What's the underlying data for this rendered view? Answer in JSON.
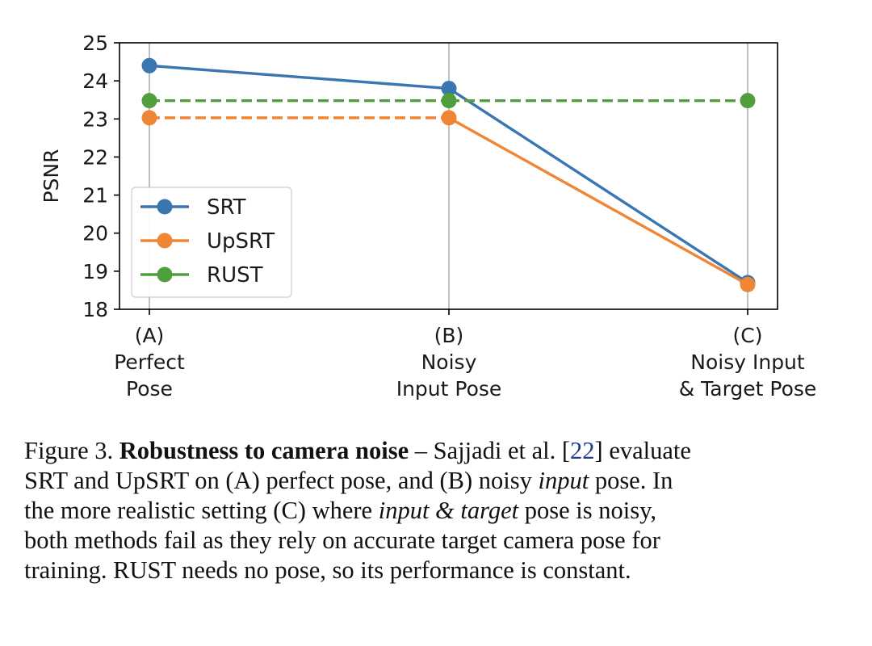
{
  "chart_data": {
    "type": "line",
    "categories": [
      [
        "(A)",
        "Perfect",
        "Pose"
      ],
      [
        "(B)",
        "Noisy",
        "Input Pose"
      ],
      [
        "(C)",
        "Noisy Input",
        "& Target Pose"
      ]
    ],
    "ylabel": "PSNR",
    "ylim": [
      18,
      25
    ],
    "yticks": [
      "18",
      "19",
      "20",
      "21",
      "22",
      "23",
      "24",
      "25"
    ],
    "grid": "vertical",
    "legend_position": "lower-left",
    "series": [
      {
        "name": "SRT",
        "color": "#3a76af",
        "values": [
          24.4,
          23.8,
          18.7
        ],
        "segments": [
          [
            "solid",
            0,
            1
          ],
          [
            "solid",
            1,
            2
          ]
        ]
      },
      {
        "name": "UpSRT",
        "color": "#ef8636",
        "values": [
          23.03,
          23.03,
          18.65
        ],
        "segments": [
          [
            "dashed",
            0,
            1
          ],
          [
            "solid",
            1,
            2
          ]
        ]
      },
      {
        "name": "RUST",
        "color": "#519e3e",
        "values": [
          23.48,
          23.48,
          23.48
        ],
        "segments": [
          [
            "dashed",
            0,
            1
          ],
          [
            "dashed",
            1,
            2
          ]
        ]
      }
    ]
  },
  "caption": {
    "lines": [
      [
        {
          "t": "Figure 3. "
        },
        {
          "t": "Robustness to camera noise",
          "s": "b"
        },
        {
          "t": " – Sajjadi et al. ["
        },
        {
          "t": "22",
          "s": "ref"
        },
        {
          "t": "] evaluate"
        }
      ],
      [
        {
          "t": "SRT and UpSRT on (A) perfect pose, and (B) noisy "
        },
        {
          "t": "input",
          "s": "i"
        },
        {
          "t": " pose. In"
        }
      ],
      [
        {
          "t": "the more realistic setting (C) where "
        },
        {
          "t": "input & target",
          "s": "i"
        },
        {
          "t": " pose is noisy,"
        }
      ],
      [
        {
          "t": "both methods fail as they rely on accurate target camera pose for"
        }
      ],
      [
        {
          "t": "training. RUST needs no pose, so its performance is constant."
        }
      ]
    ]
  }
}
